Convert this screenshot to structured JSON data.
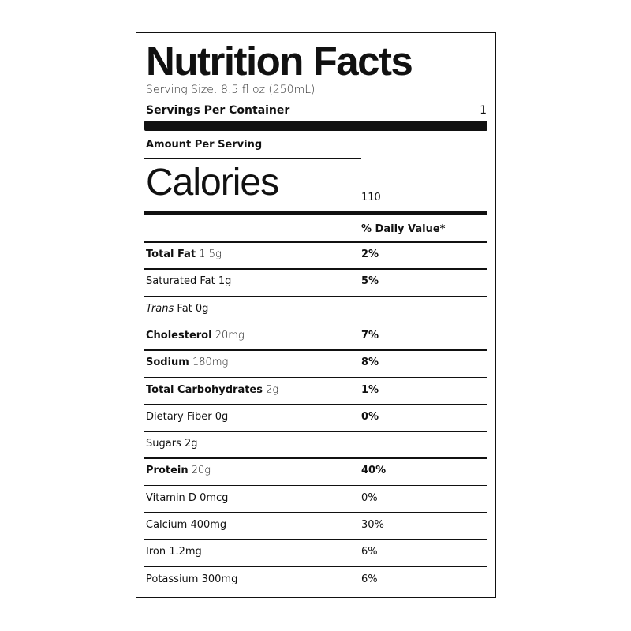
{
  "title": "Nutrition Facts",
  "serving_size": "Serving Size: 8.5 fl oz (250mL)",
  "servings_per_container": {
    "label": "Servings Per Container",
    "value": "1"
  },
  "amount_per_serving": "Amount Per Serving",
  "calories": {
    "label": "Calories",
    "value": "110"
  },
  "daily_value_header": "% Daily Value*",
  "rows": [
    {
      "name": "Total Fat",
      "amount": "1.5g",
      "dv": "2%",
      "bold": true
    },
    {
      "name": "Saturated Fat 1g",
      "dv": "5%",
      "bold": false,
      "dv_bold": true
    },
    {
      "name_italic": "Trans",
      "name": "Fat 0g",
      "bold": false
    },
    {
      "name": "Cholesterol",
      "amount": "20mg",
      "dv": "7%",
      "bold": true
    },
    {
      "name": "Sodium",
      "amount": "180mg",
      "dv": "8%",
      "bold": true
    },
    {
      "name": "Total Carbohydrates",
      "amount": "2g",
      "dv": "1%",
      "bold": true
    },
    {
      "name": "Dietary Fiber 0g",
      "dv": "0%",
      "bold": false,
      "dv_bold": true
    },
    {
      "name": "Sugars 2g",
      "bold": false
    },
    {
      "name": "Protein",
      "amount": "20g",
      "dv": "40%",
      "bold": true
    },
    {
      "name": "Vitamin D 0mcg",
      "dv": "0%",
      "bold": false
    },
    {
      "name": "Calcium 400mg",
      "dv": "30%",
      "bold": false
    },
    {
      "name": "Iron 1.2mg",
      "dv": "6%",
      "bold": false
    },
    {
      "name": "Potassium 300mg",
      "dv": "6%",
      "bold": false
    }
  ]
}
